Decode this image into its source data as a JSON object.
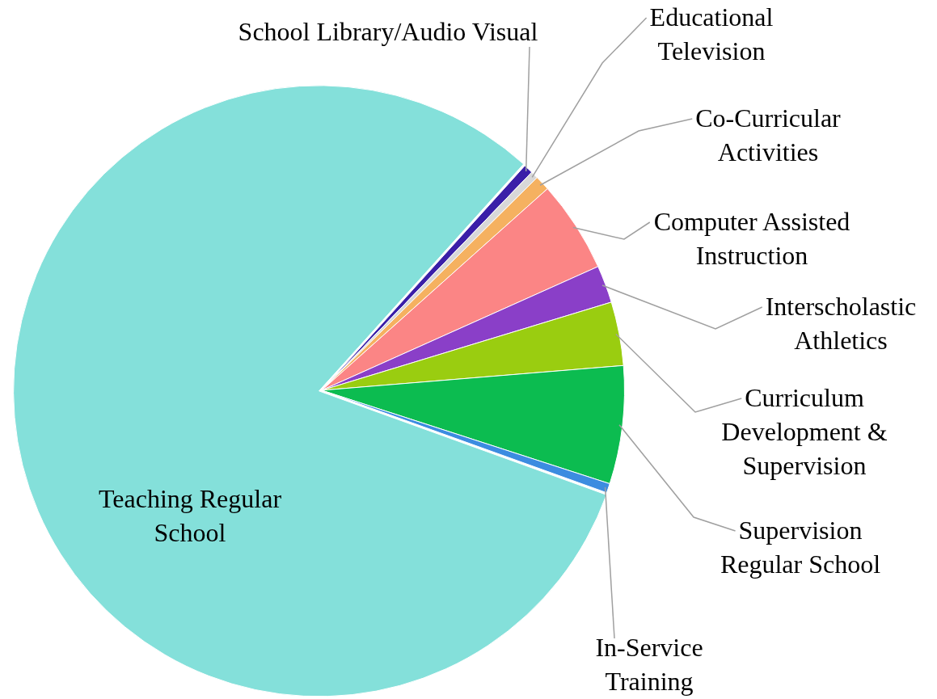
{
  "chart_data": {
    "type": "pie",
    "categories": [
      "School Library/Audio Visual",
      "Educational Television",
      "Co-Curricular Activities",
      "Computer Assisted Instruction",
      "Interscholastic Athletics",
      "Curriculum Development & Supervision",
      "Supervision Regular School",
      "In-Service Training",
      "Teaching Regular School"
    ],
    "values": [
      0.5,
      0.4,
      0.8,
      4.9,
      2.0,
      3.4,
      6.3,
      0.5,
      81.2
    ],
    "colors": [
      "#3a1fa8",
      "#d8d8d8",
      "#f5b160",
      "#fb8585",
      "#8a3fc8",
      "#9acd10",
      "#0cbc50",
      "#3c8ce0",
      "#84e0da"
    ],
    "legend": false
  }
}
